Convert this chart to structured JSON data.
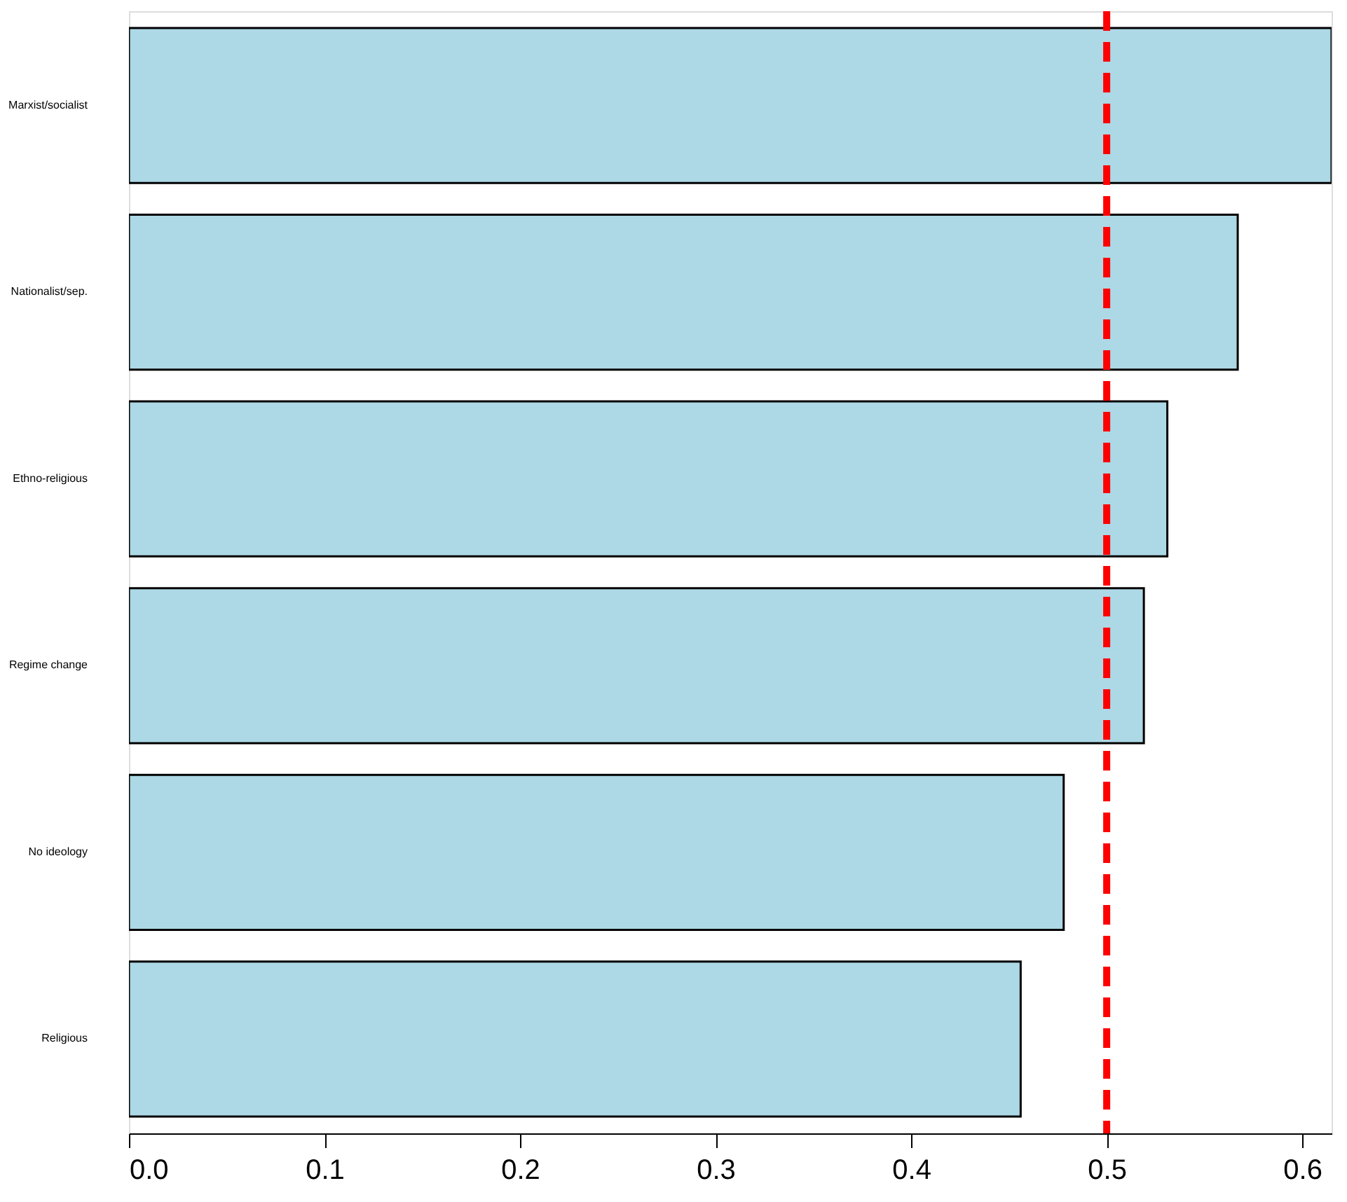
{
  "chart_data": {
    "type": "bar",
    "orientation": "horizontal",
    "categories": [
      "Marxist/socialist",
      "Nationalist/sep.",
      "Ethno-religious",
      "Regime change",
      "No ideology",
      "Religious"
    ],
    "values": [
      0.615,
      0.567,
      0.531,
      0.519,
      0.478,
      0.456
    ],
    "color": "#add8e6",
    "xlim": [
      0,
      0.615
    ],
    "xticks": [
      {
        "value": 0,
        "label": "0.0"
      },
      0.1,
      0.2,
      0.3,
      0.4,
      0.5,
      0.6
    ],
    "grid": false,
    "ref_lines": [
      {
        "axis": "x",
        "value": 0.5,
        "color": "#ff0000",
        "line_style": "dashed"
      }
    ]
  }
}
